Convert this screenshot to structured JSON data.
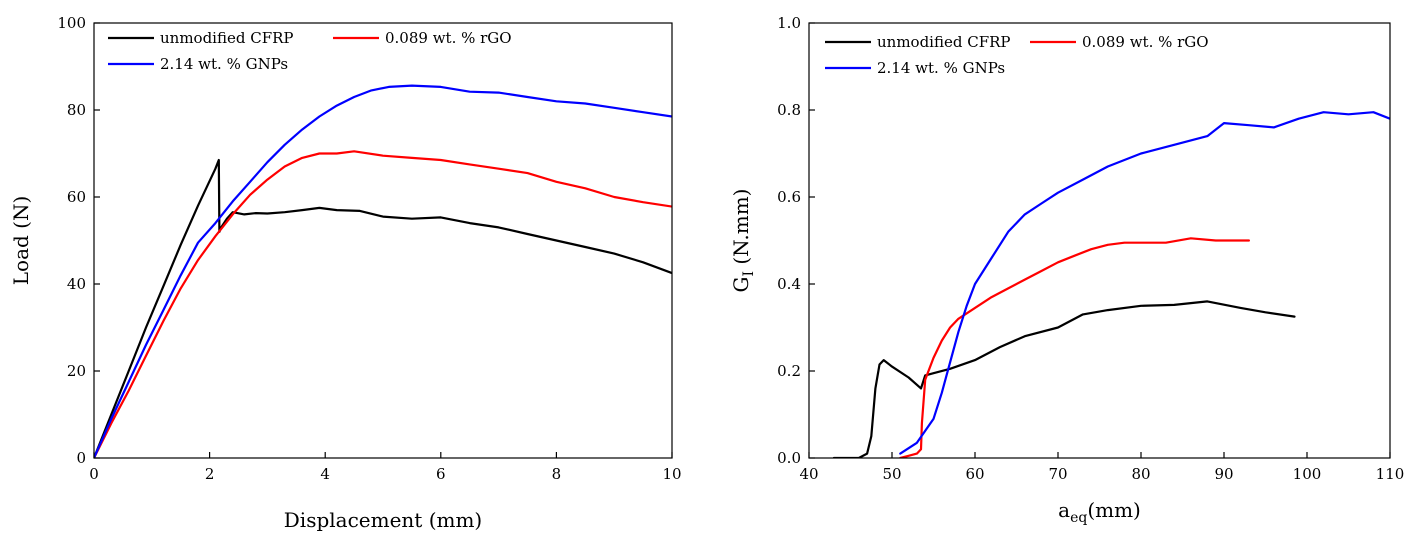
{
  "chart_data": [
    {
      "type": "line",
      "xlabel": "Displacement (mm)",
      "ylabel": "Load (N)",
      "xlim": [
        0,
        10
      ],
      "ylim": [
        0,
        100
      ],
      "xticks": [
        0,
        2,
        4,
        6,
        8,
        10
      ],
      "yticks": [
        0,
        20,
        40,
        60,
        80,
        100
      ],
      "grid": false,
      "legend_position": "top-left",
      "series": [
        {
          "name": "unmodified CFRP",
          "color": "#000000",
          "x": [
            0,
            0.3,
            0.6,
            0.9,
            1.2,
            1.5,
            1.8,
            2.1,
            2.16,
            2.17,
            2.2,
            2.3,
            2.4,
            2.6,
            2.8,
            3.0,
            3.3,
            3.6,
            3.9,
            4.2,
            4.6,
            5.0,
            5.5,
            6.0,
            6.5,
            7.0,
            7.5,
            8.0,
            8.5,
            9.0,
            9.5,
            10.0
          ],
          "y": [
            0,
            10,
            20,
            30,
            39.5,
            49,
            58,
            66.5,
            68.5,
            52,
            53,
            55,
            56.5,
            56,
            56.3,
            56.2,
            56.5,
            57,
            57.5,
            57,
            56.8,
            55.5,
            55,
            55.3,
            54,
            53,
            51.5,
            50,
            48.5,
            47,
            45,
            42.5
          ]
        },
        {
          "name": "0.089 wt. % rGO",
          "color": "#ff0000",
          "x": [
            0,
            0.3,
            0.6,
            0.9,
            1.2,
            1.5,
            1.8,
            2.1,
            2.4,
            2.7,
            3.0,
            3.3,
            3.6,
            3.9,
            4.2,
            4.5,
            5.0,
            5.5,
            6.0,
            6.5,
            7.0,
            7.5,
            8.0,
            8.5,
            9.0,
            9.5,
            10.0
          ],
          "y": [
            0,
            8,
            15.5,
            23.5,
            31.5,
            39,
            45.5,
            51,
            56,
            60.5,
            64,
            67,
            69,
            70,
            70,
            70.5,
            69.5,
            69,
            68.5,
            67.5,
            66.5,
            65.5,
            63.5,
            62,
            60,
            58.8,
            57.8
          ]
        },
        {
          "name": "2.14  wt. % GNPs",
          "color": "#0000ff",
          "x": [
            0,
            0.3,
            0.6,
            0.9,
            1.2,
            1.5,
            1.8,
            2.1,
            2.4,
            2.7,
            3.0,
            3.3,
            3.6,
            3.9,
            4.2,
            4.5,
            4.8,
            5.1,
            5.5,
            6.0,
            6.5,
            7.0,
            7.5,
            8.0,
            8.5,
            9.0,
            9.5,
            10.0
          ],
          "y": [
            0,
            9,
            17.5,
            26,
            34,
            42,
            49.5,
            54,
            59,
            63.5,
            68,
            72,
            75.5,
            78.5,
            81,
            83,
            84.5,
            85.3,
            85.6,
            85.3,
            84.2,
            84,
            83,
            82,
            81.5,
            80.5,
            79.5,
            78.5
          ]
        }
      ]
    },
    {
      "type": "line",
      "xlabel": "a",
      "xlabel_sub": "eq",
      "xlabel_unit": "(mm)",
      "ylabel": "G",
      "ylabel_sub": "I",
      "ylabel_unit": " (N.mm)",
      "xlim": [
        40,
        110
      ],
      "ylim": [
        0,
        1.0
      ],
      "xticks": [
        40,
        50,
        60,
        70,
        80,
        90,
        100,
        110
      ],
      "yticks": [
        0.0,
        0.2,
        0.4,
        0.6,
        0.8,
        1.0
      ],
      "grid": false,
      "legend_position": "top-left",
      "series": [
        {
          "name": "unmodified CFRP",
          "color": "#000000",
          "x": [
            43,
            46,
            47,
            47.5,
            48,
            48.5,
            49,
            50,
            52,
            53.5,
            54,
            55,
            57,
            60,
            63,
            66,
            70,
            73,
            76,
            80,
            84,
            88,
            92,
            95,
            98.5
          ],
          "y": [
            0,
            0,
            0.01,
            0.05,
            0.16,
            0.215,
            0.225,
            0.21,
            0.185,
            0.16,
            0.19,
            0.195,
            0.205,
            0.225,
            0.255,
            0.28,
            0.3,
            0.33,
            0.34,
            0.35,
            0.352,
            0.36,
            0.345,
            0.335,
            0.325
          ]
        },
        {
          "name": "0.089 wt. % rGO",
          "color": "#ff0000",
          "x": [
            51,
            52,
            53,
            53.5,
            53.6,
            54,
            55,
            56,
            57,
            58,
            60,
            62,
            64,
            66,
            68,
            70,
            72,
            74,
            76,
            78,
            80,
            83,
            86,
            89,
            93
          ],
          "y": [
            0,
            0.005,
            0.01,
            0.02,
            0.08,
            0.18,
            0.23,
            0.27,
            0.3,
            0.32,
            0.345,
            0.37,
            0.39,
            0.41,
            0.43,
            0.45,
            0.465,
            0.48,
            0.49,
            0.495,
            0.495,
            0.495,
            0.505,
            0.5,
            0.5
          ]
        },
        {
          "name": "2.14  wt. % GNPs",
          "color": "#0000ff",
          "x": [
            51,
            53,
            55,
            56,
            57,
            58,
            59,
            60,
            62,
            64,
            66,
            68,
            70,
            73,
            76,
            80,
            84,
            88,
            90,
            93,
            96,
            99,
            102,
            105,
            108,
            110
          ],
          "y": [
            0.01,
            0.035,
            0.09,
            0.15,
            0.22,
            0.29,
            0.35,
            0.4,
            0.46,
            0.52,
            0.56,
            0.585,
            0.61,
            0.64,
            0.67,
            0.7,
            0.72,
            0.74,
            0.77,
            0.765,
            0.76,
            0.78,
            0.795,
            0.79,
            0.795,
            0.78
          ]
        }
      ]
    }
  ]
}
